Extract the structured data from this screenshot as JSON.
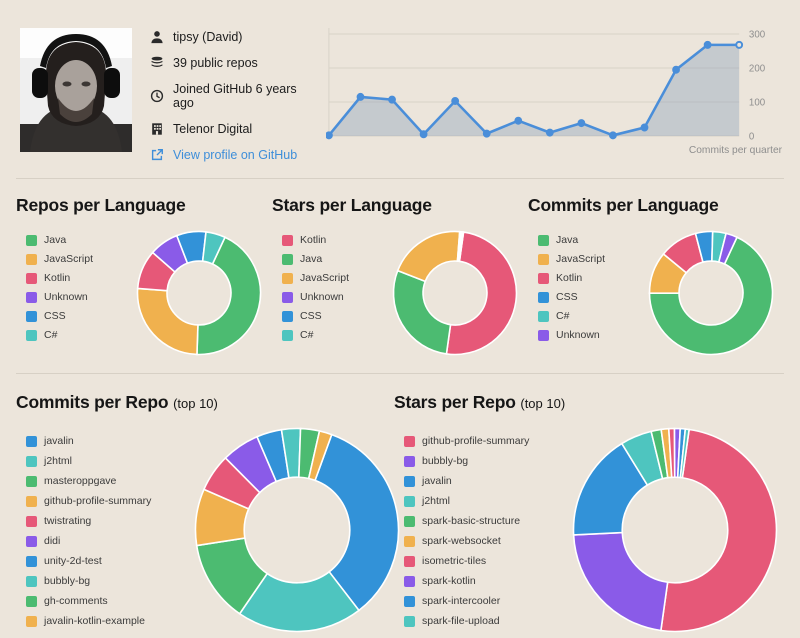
{
  "profile": {
    "name": "tipsy (David)",
    "public_repos": "39 public repos",
    "joined": "Joined GitHub 6 years ago",
    "organization": "Telenor Digital",
    "profile_link": "View profile on GitHub",
    "link_color": "#3e8ed9"
  },
  "palette": {
    "green": "#4cbb71",
    "orange": "#f0b14e",
    "pink": "#e65878",
    "purple": "#8a5be8",
    "blue": "#3292d8",
    "teal": "#4ec5bf",
    "background": "#ece5db",
    "grid": "#d8d2c7",
    "muted_text": "#8e8e8e"
  },
  "chart_data": [
    {
      "type": "line",
      "caption": "Commits per quarter",
      "points": 14,
      "values": [
        2,
        115,
        107,
        5,
        103,
        7,
        45,
        10,
        38,
        2,
        25,
        195,
        268,
        268
      ],
      "ylim": [
        0,
        300
      ],
      "yticks": [
        0,
        100,
        200,
        300
      ],
      "grid": "horizontal",
      "legend": "none",
      "line_color": "#4a8ed9",
      "area_color": "#97a9bf"
    },
    {
      "type": "donut",
      "title": "Repos per Language",
      "start_angle_deg": 25,
      "slices": [
        {
          "label": "Java",
          "value": 17,
          "color": "#4cbb71"
        },
        {
          "label": "JavaScript",
          "value": 10,
          "color": "#f0b14e"
        },
        {
          "label": "Kotlin",
          "value": 4,
          "color": "#e65878"
        },
        {
          "label": "Unknown",
          "value": 3,
          "color": "#8a5be8"
        },
        {
          "label": "CSS",
          "value": 3,
          "color": "#3292d8"
        },
        {
          "label": "C#",
          "value": 2,
          "color": "#4ec5bf"
        }
      ]
    },
    {
      "type": "donut",
      "title": "Stars per Language",
      "start_angle_deg": 8,
      "slices": [
        {
          "label": "Kotlin",
          "value": 50,
          "color": "#e65878"
        },
        {
          "label": "Java",
          "value": 28.7,
          "color": "#4cbb71"
        },
        {
          "label": "JavaScript",
          "value": 20.3,
          "color": "#f0b14e"
        },
        {
          "label": "Unknown",
          "value": 0.4,
          "color": "#8a5be8"
        },
        {
          "label": "CSS",
          "value": 0.3,
          "color": "#3292d8"
        },
        {
          "label": "C#",
          "value": 0.3,
          "color": "#4ec5bf"
        }
      ]
    },
    {
      "type": "donut",
      "title": "Commits per Language",
      "start_angle_deg": 25,
      "slices": [
        {
          "label": "Java",
          "value": 68,
          "color": "#4cbb71"
        },
        {
          "label": "JavaScript",
          "value": 11,
          "color": "#f0b14e"
        },
        {
          "label": "Kotlin",
          "value": 10,
          "color": "#e65878"
        },
        {
          "label": "CSS",
          "value": 4.5,
          "color": "#3292d8"
        },
        {
          "label": "C#",
          "value": 3.5,
          "color": "#4ec5bf"
        },
        {
          "label": "Unknown",
          "value": 3,
          "color": "#8a5be8"
        }
      ]
    },
    {
      "type": "donut",
      "title": "Commits per Repo",
      "title_suffix": "(top 10)",
      "start_angle_deg": 20,
      "slices": [
        {
          "label": "javalin",
          "value": 34,
          "color": "#3292d8"
        },
        {
          "label": "j2html",
          "value": 20,
          "color": "#4ec5bf"
        },
        {
          "label": "masteroppgave",
          "value": 13,
          "color": "#4cbb71"
        },
        {
          "label": "github-profile-summary",
          "value": 9,
          "color": "#f0b14e"
        },
        {
          "label": "twistrating",
          "value": 6,
          "color": "#e65878"
        },
        {
          "label": "didi",
          "value": 6,
          "color": "#8a5be8"
        },
        {
          "label": "unity-2d-test",
          "value": 4,
          "color": "#3292d8"
        },
        {
          "label": "bubbly-bg",
          "value": 3,
          "color": "#4ec5bf"
        },
        {
          "label": "gh-comments",
          "value": 3,
          "color": "#4cbb71"
        },
        {
          "label": "javalin-kotlin-example",
          "value": 2,
          "color": "#f0b14e"
        }
      ]
    },
    {
      "type": "donut",
      "title": "Stars per Repo",
      "title_suffix": "(top 10)",
      "start_angle_deg": 8,
      "slices": [
        {
          "label": "github-profile-summary",
          "value": 50,
          "color": "#e65878"
        },
        {
          "label": "bubbly-bg",
          "value": 22,
          "color": "#8a5be8"
        },
        {
          "label": "javalin",
          "value": 17,
          "color": "#3292d8"
        },
        {
          "label": "j2html",
          "value": 5,
          "color": "#4ec5bf"
        },
        {
          "label": "spark-basic-structure",
          "value": 1.6,
          "color": "#4cbb71"
        },
        {
          "label": "spark-websocket",
          "value": 1.2,
          "color": "#f0b14e"
        },
        {
          "label": "isometric-tiles",
          "value": 0.9,
          "color": "#e65878"
        },
        {
          "label": "spark-kotlin",
          "value": 0.9,
          "color": "#8a5be8"
        },
        {
          "label": "spark-intercooler",
          "value": 0.8,
          "color": "#3292d8"
        },
        {
          "label": "spark-file-upload",
          "value": 0.6,
          "color": "#4ec5bf"
        }
      ]
    }
  ]
}
